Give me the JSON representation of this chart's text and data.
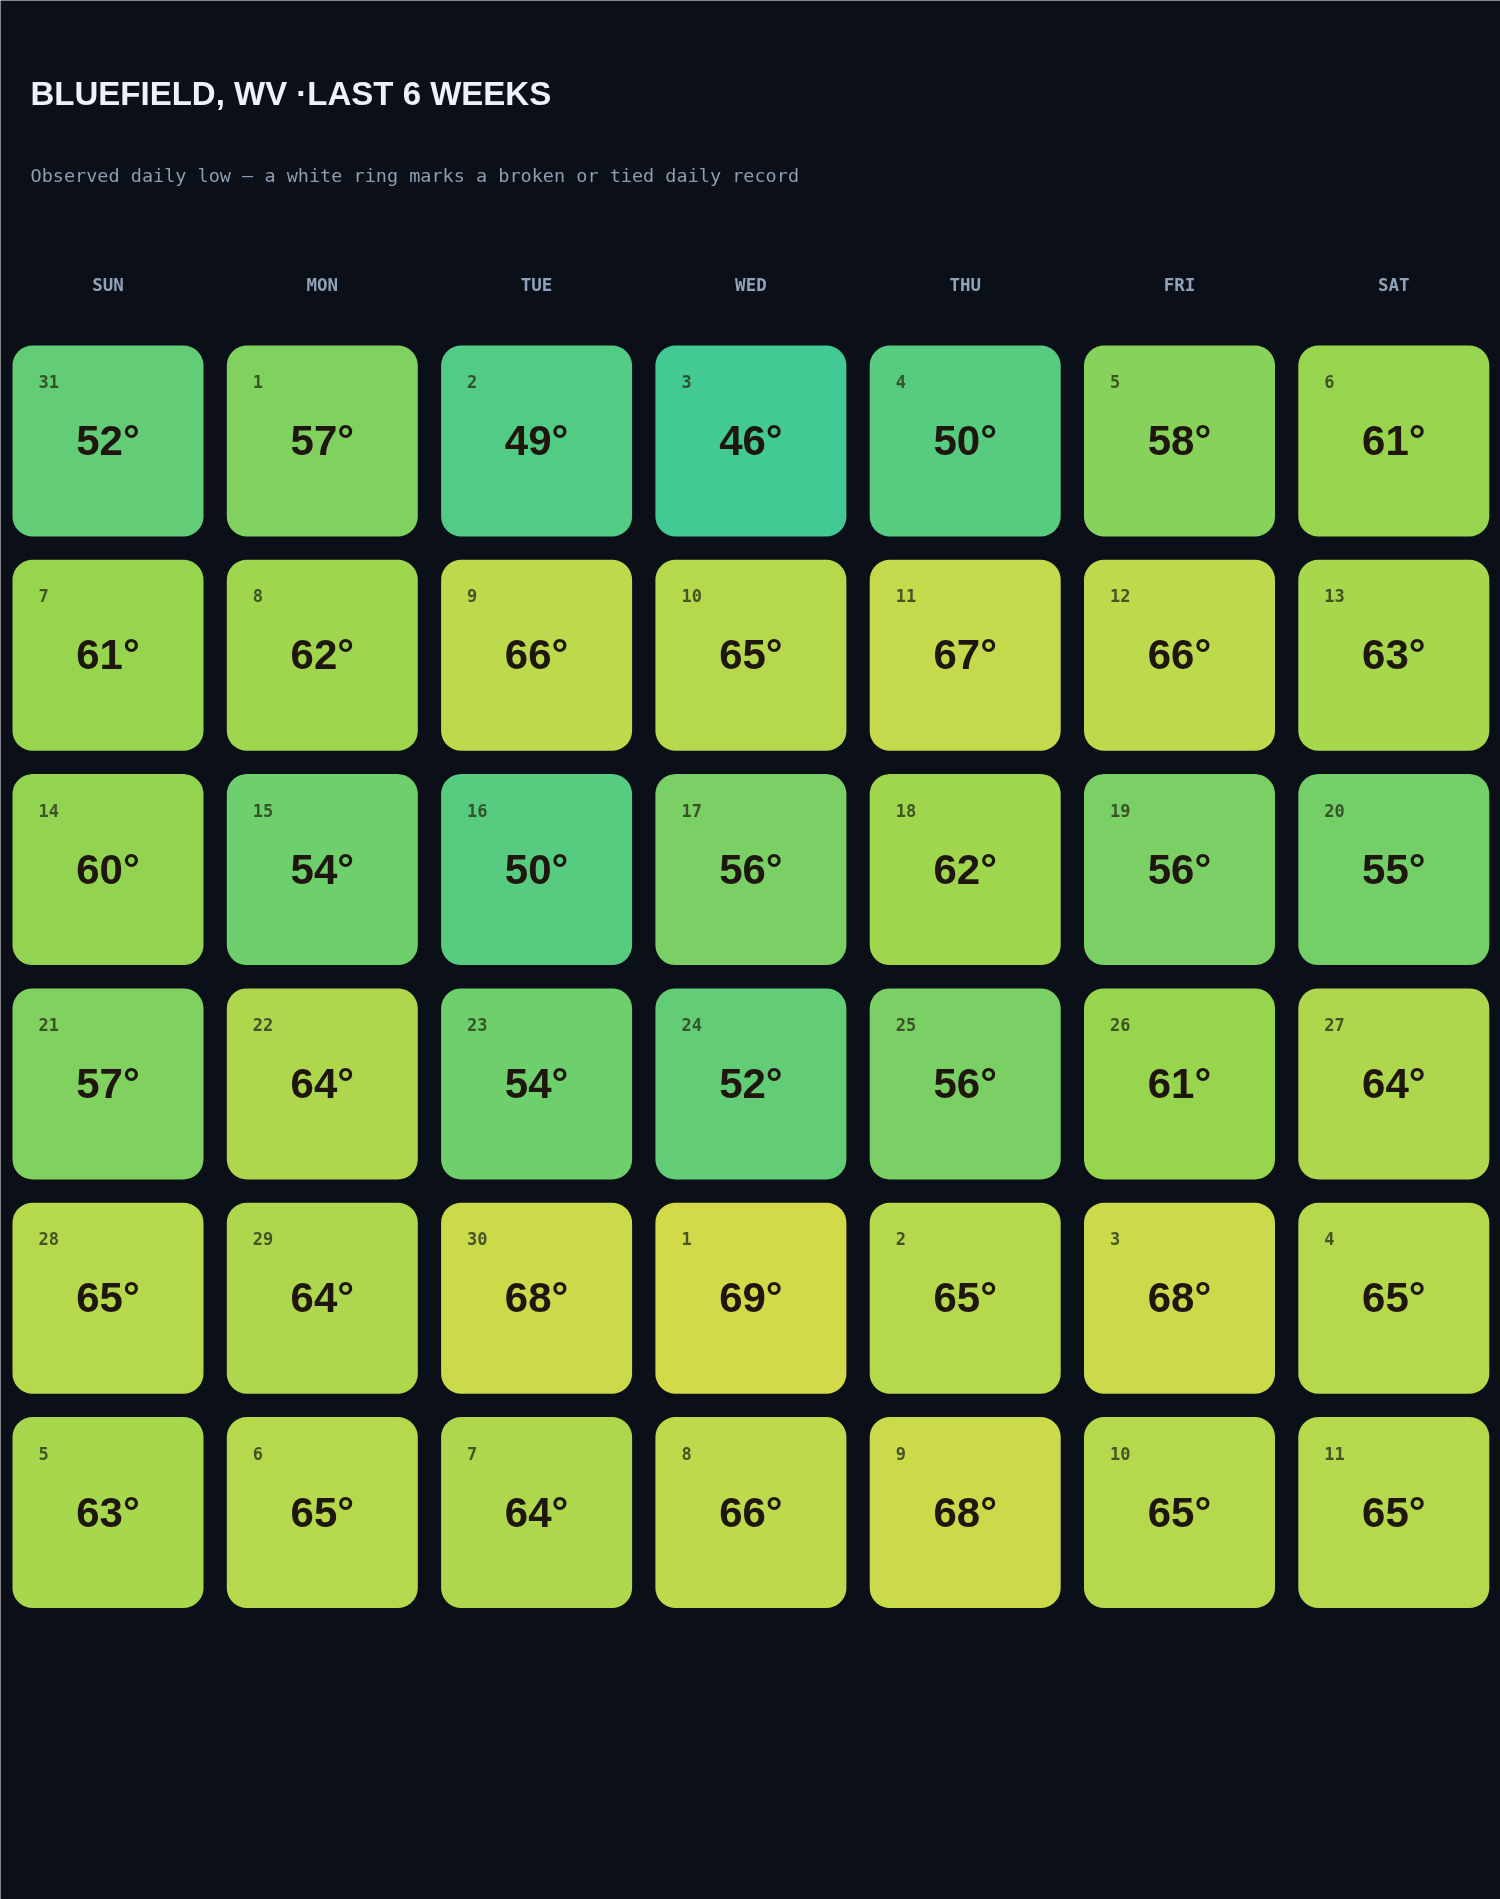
{
  "chart_data": {
    "type": "heatmap",
    "title": "BLUEFIELD, WV ·LAST 6 WEEKS",
    "subtitle": "Observed daily low — a white ring marks a broken or tied daily record",
    "categories": [
      "SUN",
      "MON",
      "TUE",
      "WED",
      "THU",
      "FRI",
      "SAT"
    ],
    "y_categories": [
      null,
      null,
      null,
      null,
      null,
      null
    ],
    "cells": [
      [
        52,
        57,
        49,
        46,
        50,
        58,
        61
      ],
      [
        61,
        62,
        66,
        65,
        67,
        66,
        63
      ],
      [
        60,
        54,
        50,
        56,
        62,
        56,
        55
      ],
      [
        57,
        64,
        54,
        52,
        56,
        61,
        64
      ],
      [
        65,
        64,
        68,
        69,
        65,
        68,
        65
      ],
      [
        63,
        65,
        64,
        66,
        68,
        65,
        65
      ]
    ],
    "cell_labels": [
      [
        "52°",
        "57°",
        "49°",
        "46°",
        "50°",
        "58°",
        "61°"
      ],
      [
        "61°",
        "62°",
        "66°",
        "65°",
        "67°",
        "66°",
        "63°"
      ],
      [
        "60°",
        "54°",
        "50°",
        "56°",
        "62°",
        "56°",
        "55°"
      ],
      [
        "57°",
        "64°",
        "54°",
        "52°",
        "56°",
        "61°",
        "64°"
      ],
      [
        "65°",
        "64°",
        "68°",
        "69°",
        "65°",
        "68°",
        "65°"
      ],
      [
        "63°",
        "65°",
        "64°",
        "66°",
        "68°",
        "65°",
        "65°"
      ]
    ],
    "annotations": [
      "31",
      "1",
      "2",
      "3",
      "4",
      "5",
      "6",
      "7",
      "8",
      "9",
      "10",
      "11",
      "12",
      "13",
      "14",
      "15",
      "16",
      "17",
      "18",
      "19",
      "20",
      "21",
      "22",
      "23",
      "24",
      "25",
      "26",
      "27",
      "28",
      "29",
      "30",
      "1",
      "2",
      "3",
      "4",
      "5",
      "6",
      "7",
      "8",
      "9",
      "10",
      "11"
    ]
  }
}
